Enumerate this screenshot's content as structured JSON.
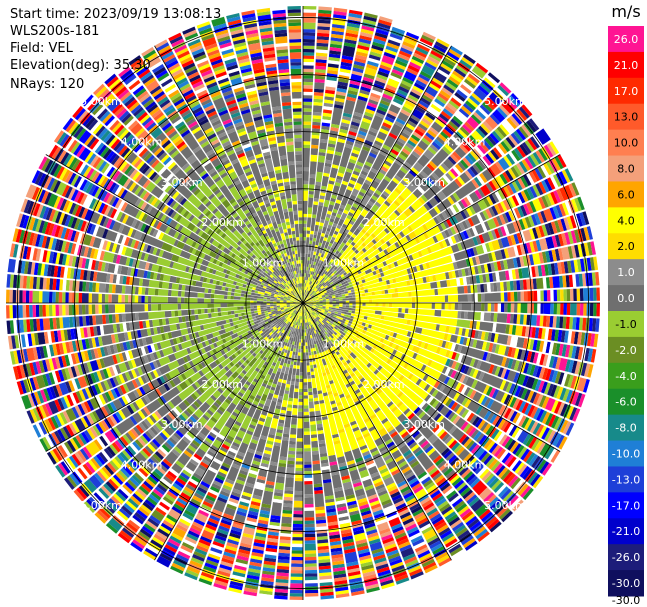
{
  "header": {
    "start_time": "Start time: 2023/09/19 13:08:13",
    "instrument": "WLS200s-181",
    "field": "Field: VEL",
    "elevation": "Elevation(deg): 35.30",
    "nrays": "NRays: 120"
  },
  "chart_data": {
    "type": "heatmap",
    "projection": "polar-ppi",
    "field": "VEL",
    "nrays": 120,
    "range_rings_km": [
      1,
      2,
      3,
      4,
      5
    ],
    "range_ring_labels": [
      "1.00km",
      "2.00km",
      "3.00km",
      "4.00km",
      "5.00km"
    ],
    "max_range_km": 5.2,
    "radial_lines_deg": [
      0,
      30,
      60,
      90,
      120,
      150,
      180,
      210,
      240,
      270,
      300,
      330
    ],
    "colorbar": {
      "unit": "m/s",
      "levels": [
        -30.0,
        -26.0,
        -21.0,
        -17.0,
        -13.0,
        -10.0,
        -8.0,
        -6.0,
        -4.0,
        -2.0,
        -1.0,
        0.0,
        1.0,
        2.0,
        4.0,
        6.0,
        8.0,
        10.0,
        13.0,
        17.0,
        21.0,
        26.0,
        30.0
      ],
      "tick_labels": [
        "-30.0",
        "-26.0",
        "-21.0",
        "-17.0",
        "-13.0",
        "-10.0",
        "-8.0",
        "-6.0",
        "-4.0",
        "-2.0",
        "-1.0",
        "0.0",
        "1.0",
        "2.0",
        "4.0",
        "6.0",
        "8.0",
        "10.0",
        "13.0",
        "17.0",
        "21.0",
        "26.0"
      ],
      "colors": [
        "#0f0f5e",
        "#1d1d7a",
        "#0000cc",
        "#0000ff",
        "#1e3fd8",
        "#1f7fd6",
        "#178a8a",
        "#1a8f2a",
        "#3a9e1c",
        "#6b8e23",
        "#9acd32",
        "#6f6f6f",
        "#8c8c8c",
        "#ffdd00",
        "#ffff00",
        "#ffa500",
        "#f4a07a",
        "#ff7f50",
        "#ff5a2a",
        "#ff2a00",
        "#ff0000",
        "#ff1493"
      ]
    }
  }
}
